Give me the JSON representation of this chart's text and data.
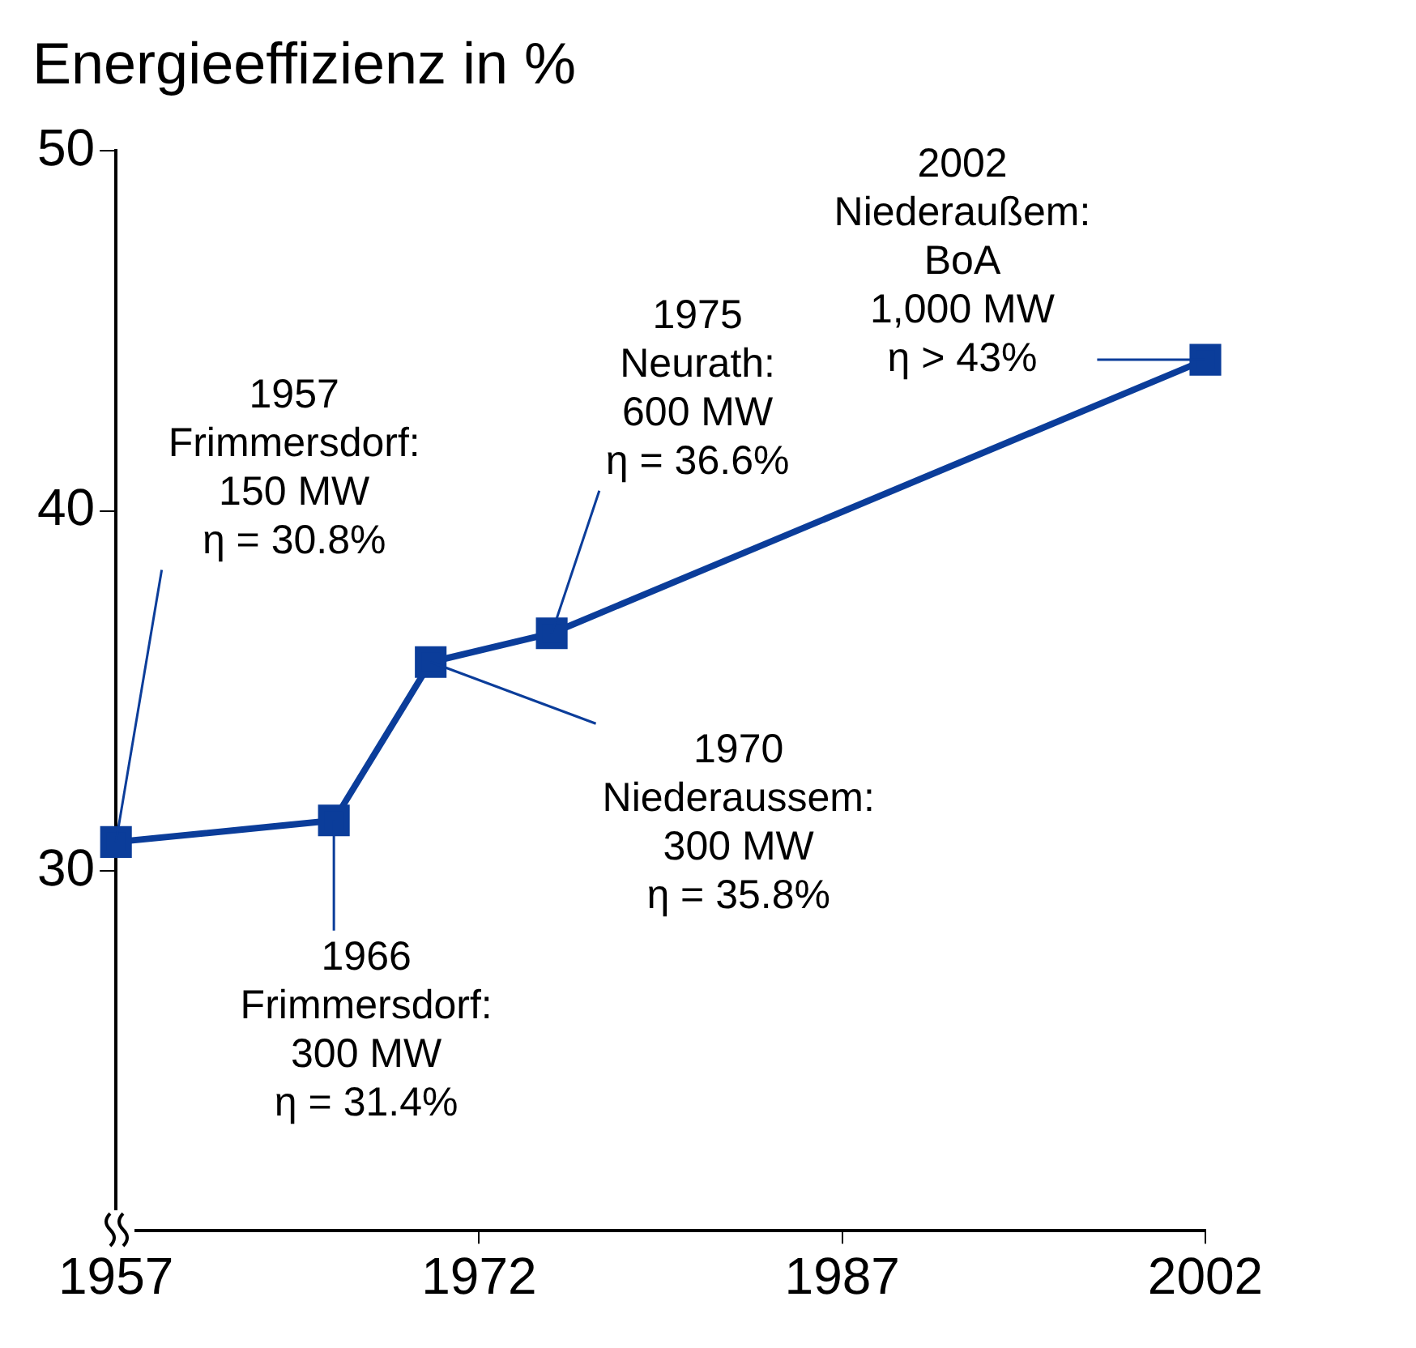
{
  "chart_data": {
    "type": "line",
    "title": "Energieeffizienz in %",
    "x": [
      1957,
      1966,
      1970,
      1975,
      2002
    ],
    "series": [
      {
        "color": "#0b3d9a",
        "values": [
          30.8,
          31.4,
          35.8,
          36.6,
          44.2
        ]
      }
    ],
    "xlim": [
      1957,
      2002
    ],
    "xticks": [
      1957,
      1972,
      1987,
      2002
    ],
    "ylim": [
      20,
      50
    ],
    "yticks": [
      30,
      40,
      50
    ],
    "grid": false,
    "legend": false,
    "marker": "square",
    "line_style": "solid",
    "annotations": [
      {
        "text": "1957\nFrimmersdorf:\n150 MW\nη = 30.8%",
        "x": 1957,
        "y": 30.8
      },
      {
        "text": "1966\nFrimmersdorf:\n300 MW\nη = 31.4%",
        "x": 1966,
        "y": 31.4
      },
      {
        "text": "1970\nNiederaussem:\n300 MW\nη = 35.8%",
        "x": 1970,
        "y": 35.8
      },
      {
        "text": "1975\nNeurath:\n600 MW\nη = 36.6%",
        "x": 1975,
        "y": 36.6
      },
      {
        "text": "2002\nNiederaußem:\nBoA\n1,000 MW\nη > 43%",
        "x": 2002,
        "y": 44.2
      }
    ]
  }
}
